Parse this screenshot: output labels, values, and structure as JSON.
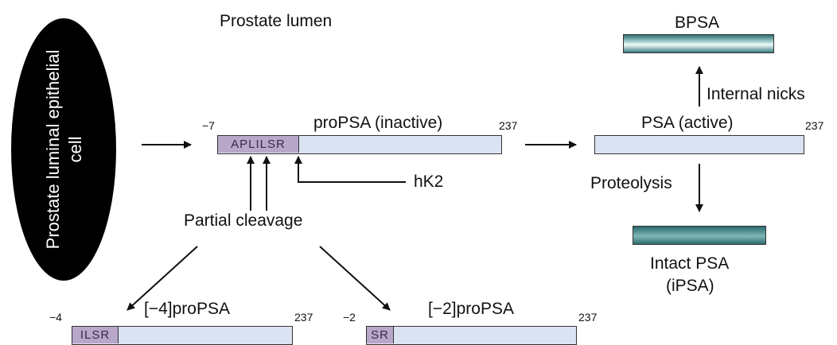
{
  "labels": {
    "cell": [
      "Prostate luminal epithelial",
      "cell"
    ],
    "lumen": "Prostate lumen",
    "propsa": "proPSA (inactive)",
    "propsa_start": "−7",
    "propsa_end": "237",
    "propsa_prefix": "APLILSR",
    "hk2": "hK2",
    "partial_cleavage": "Partial cleavage",
    "psa_active": "PSA (active)",
    "psa_end": "237",
    "bpsa": "BPSA",
    "internal_nicks": "Internal nicks",
    "proteolysis": "Proteolysis",
    "intact_psa": [
      "Intact PSA",
      "(iPSA)"
    ],
    "m4_title": "[−4]proPSA",
    "m4_start": "−4",
    "m4_end": "237",
    "m4_prefix": "ILSR",
    "m2_title": "[−2]proPSA",
    "m2_start": "−2",
    "m2_end": "237",
    "m2_prefix": "SR"
  },
  "colors": {
    "propeptide": "#b8a7c9",
    "protein_bar": "#dbe3f2",
    "bpsa_teal": "#2f6f73",
    "cell_fill": "#000000"
  }
}
